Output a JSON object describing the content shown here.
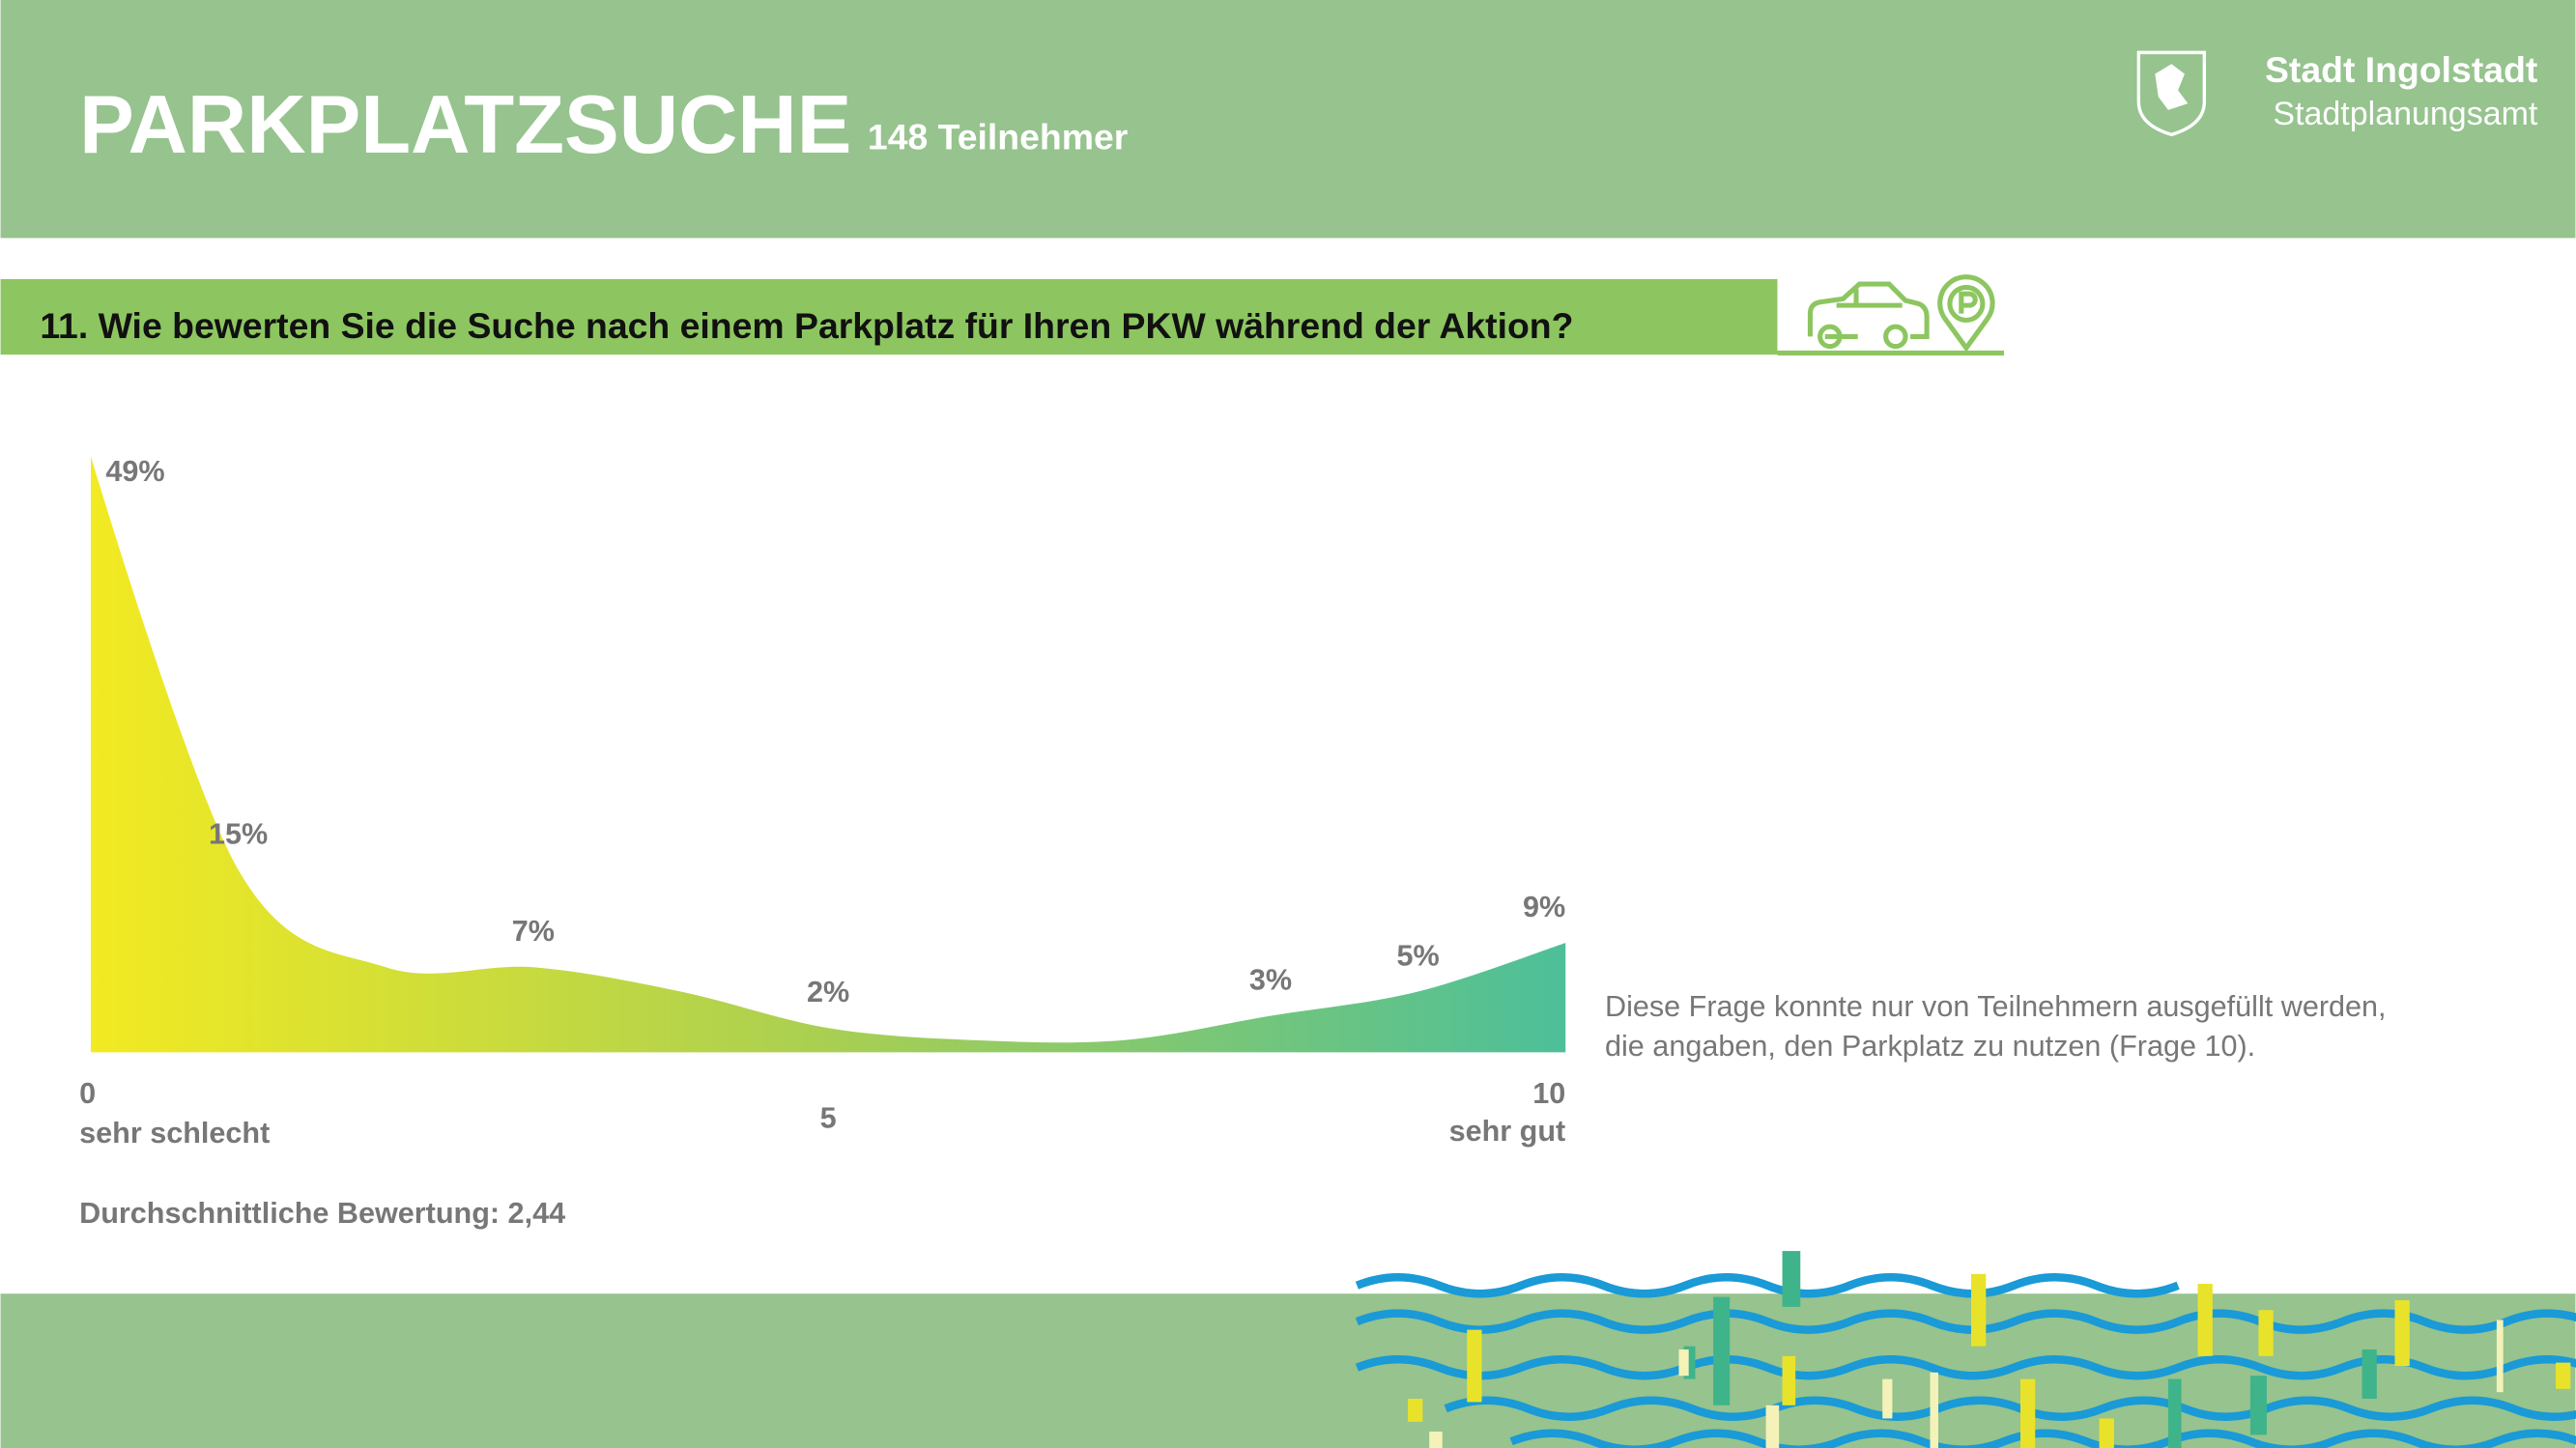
{
  "header": {
    "title": "PARKPLATZSUCHE",
    "participants": "148 Teilnehmer",
    "org": "Stadt Ingolstadt",
    "department": "Stadtplanungsamt"
  },
  "question": "11. Wie bewerten Sie die Suche nach einem Parkplatz für Ihren PKW während der Aktion?",
  "chart_data": {
    "type": "area",
    "x": [
      0,
      1,
      2,
      3,
      4,
      5,
      6,
      7,
      8,
      9,
      10
    ],
    "values": [
      49,
      15,
      7,
      7,
      5,
      2,
      1,
      1,
      3,
      5,
      9
    ],
    "value_labels": [
      "49%",
      "15%",
      null,
      "7%",
      null,
      "2%",
      null,
      null,
      "3%",
      "5%",
      "9%"
    ],
    "xticks": [
      0,
      5,
      10
    ],
    "x_end_labels": [
      "sehr schlecht",
      "sehr gut"
    ],
    "colors": [
      "#f2ea22",
      "#a9cf52",
      "#4dbf9a"
    ]
  },
  "note": [
    "Diese Frage konnte nur von Teilnehmern ausgefüllt werden,",
    "die angaben, den Parkplatz zu nutzen (Frage 10)."
  ],
  "average": "Durchschnittliche Bewertung: 2,44"
}
